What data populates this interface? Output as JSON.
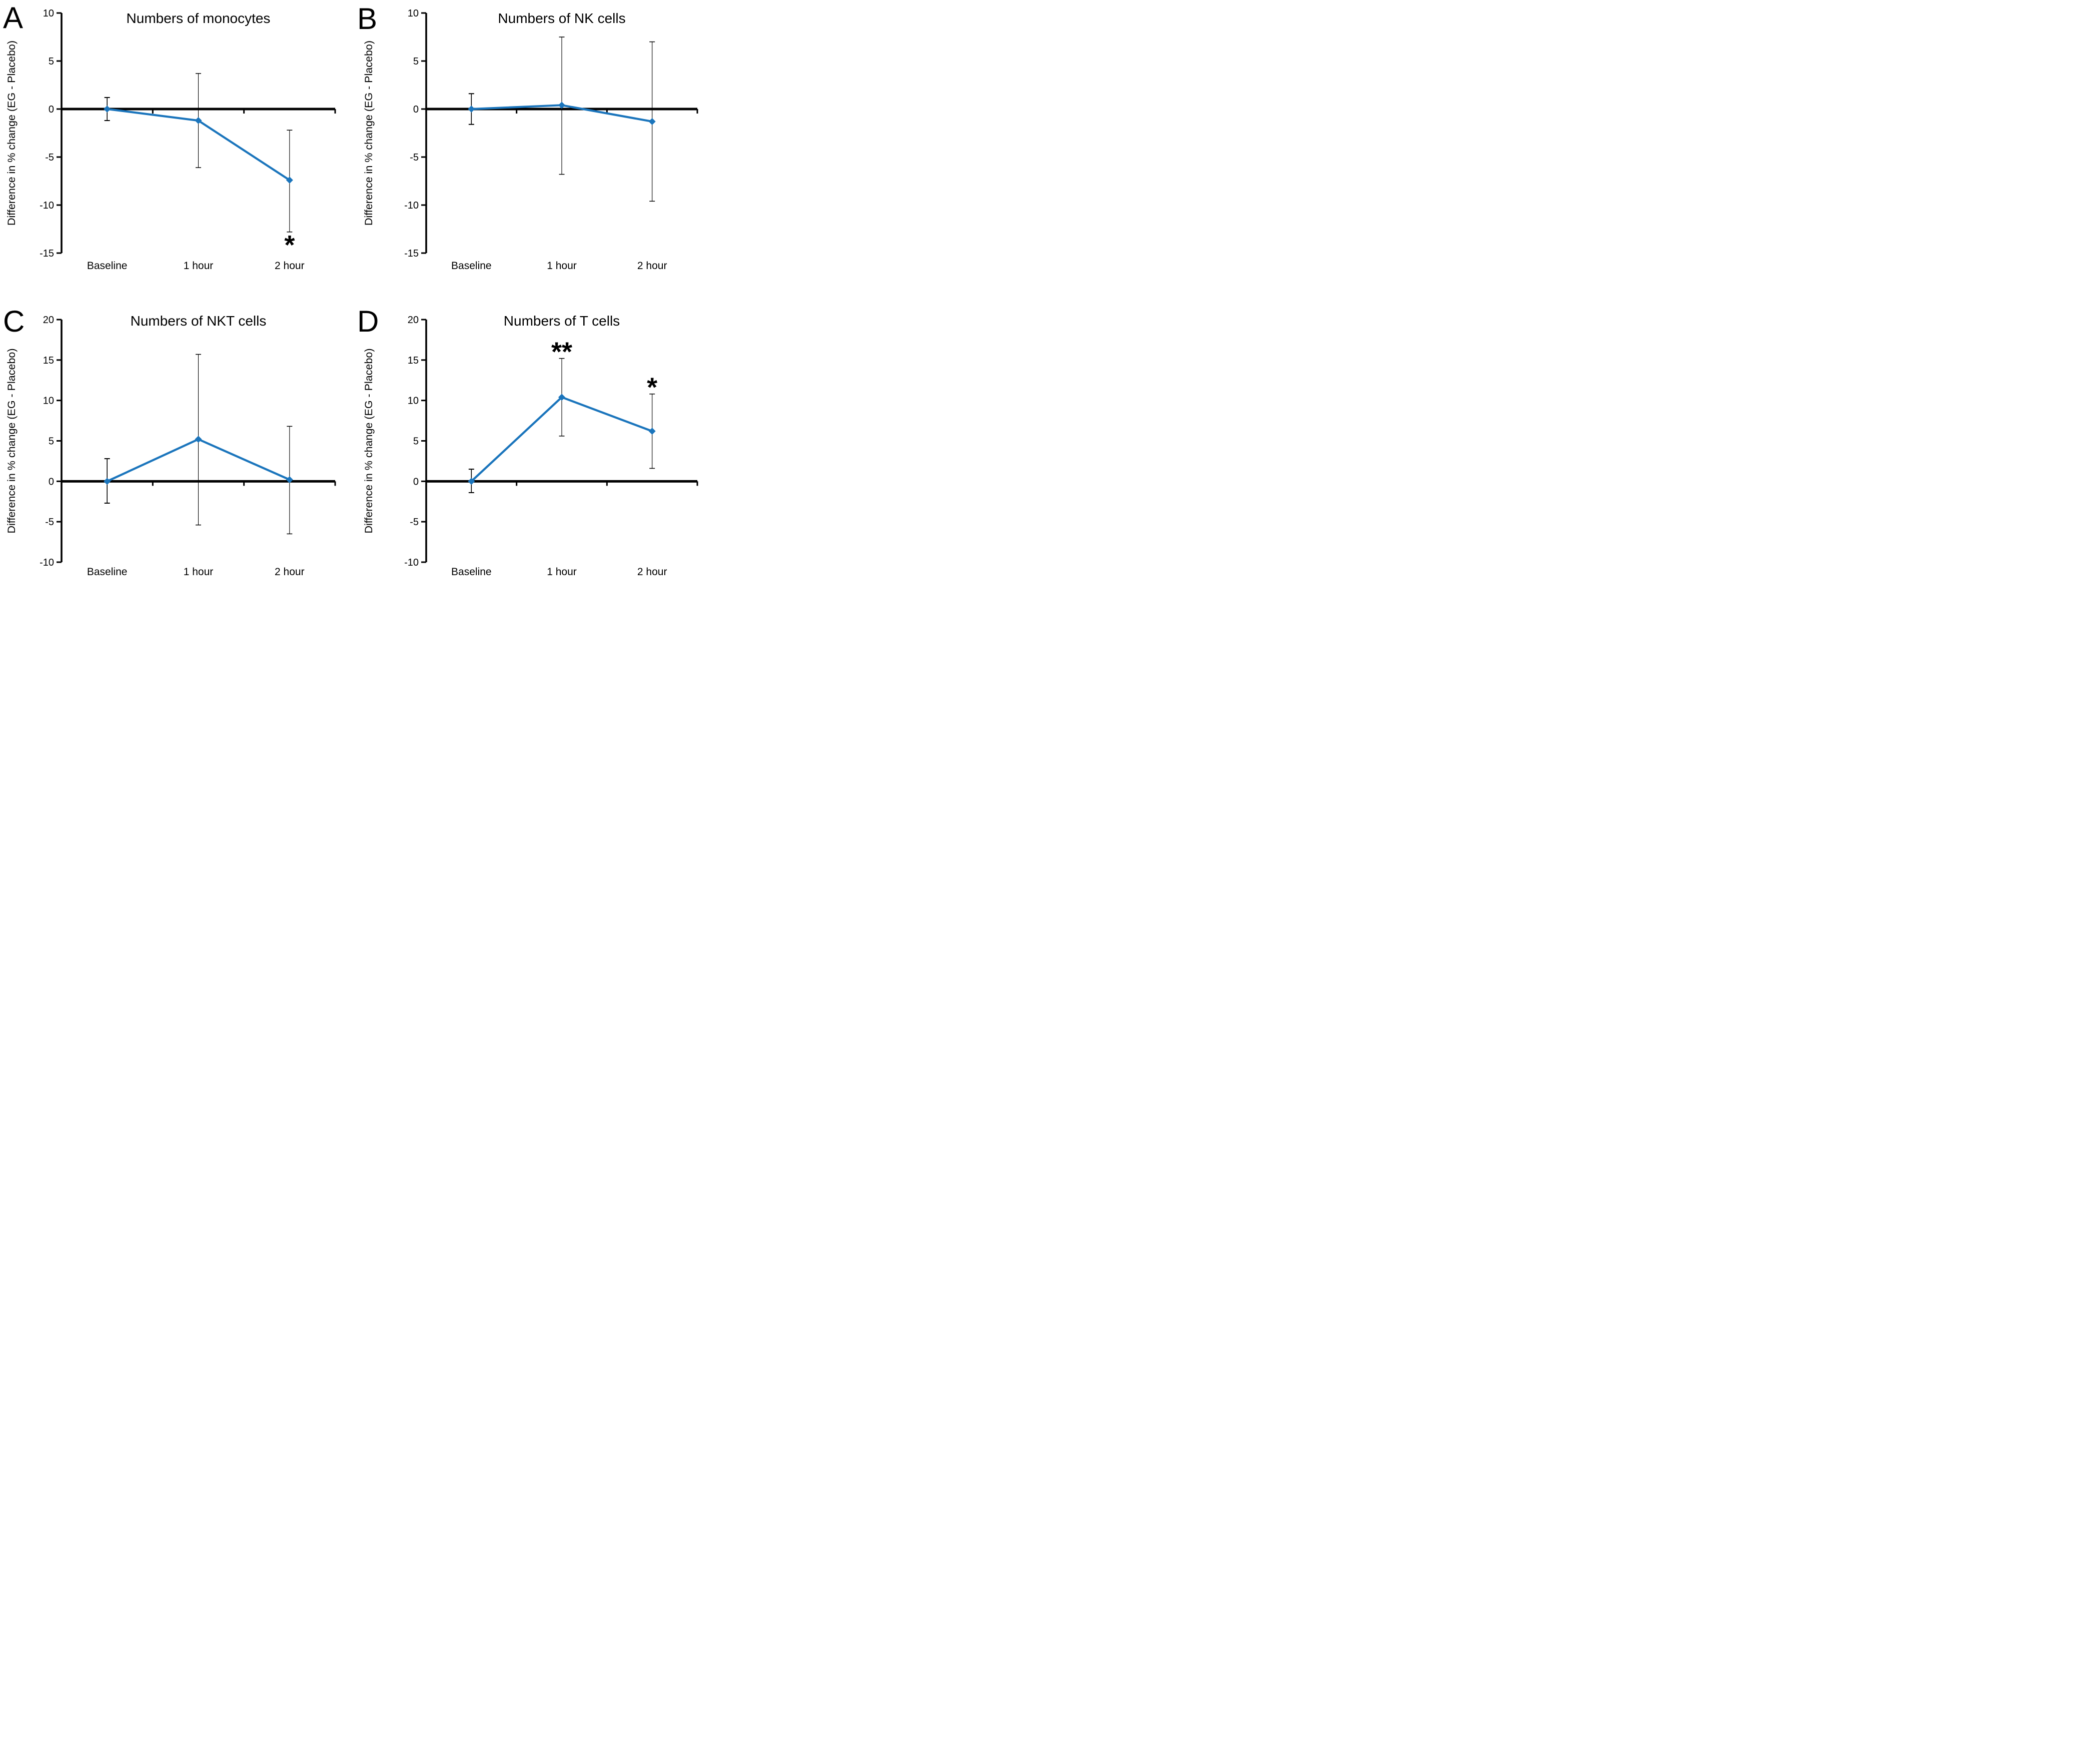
{
  "figure": {
    "background_color": "#ffffff",
    "text_color": "#000000",
    "accent_color": "#1b75bc",
    "panel_letters": [
      "A",
      "B",
      "C",
      "D"
    ]
  },
  "chart_data": [
    {
      "panel": "A",
      "type": "line",
      "title": "Numbers of monocytes",
      "xlabel": "",
      "ylabel": "Difference in % change (EG - Placebo)",
      "categories": [
        "Baseline",
        "1 hour",
        "2 hour"
      ],
      "ylim": [
        -15,
        10
      ],
      "yticks": [
        10,
        5,
        0,
        -5,
        -10,
        -15
      ],
      "grid": false,
      "legend": "none",
      "series": [
        {
          "name": "EG minus Placebo",
          "color": "#1b75bc",
          "marker": "diamond",
          "values": [
            0,
            -1.2,
            -7.4
          ],
          "err_upper": [
            1.2,
            3.7,
            -2.2
          ],
          "err_lower": [
            -1.2,
            -6.1,
            -12.8
          ]
        }
      ],
      "annotations": [
        {
          "text": "*",
          "category_index": 2,
          "placement": "below_error_bar"
        }
      ]
    },
    {
      "panel": "B",
      "type": "line",
      "title": "Numbers of NK cells",
      "xlabel": "",
      "ylabel": "Difference in % change (EG - Placebo)",
      "categories": [
        "Baseline",
        "1 hour",
        "2 hour"
      ],
      "ylim": [
        -15,
        10
      ],
      "yticks": [
        10,
        5,
        0,
        -5,
        -10,
        -15
      ],
      "grid": false,
      "legend": "none",
      "series": [
        {
          "name": "EG minus Placebo",
          "color": "#1b75bc",
          "marker": "diamond",
          "values": [
            0,
            0.4,
            -1.3
          ],
          "err_upper": [
            1.6,
            7.5,
            7.0
          ],
          "err_lower": [
            -1.6,
            -6.8,
            -9.6
          ]
        }
      ],
      "annotations": []
    },
    {
      "panel": "C",
      "type": "line",
      "title": "Numbers of NKT cells",
      "xlabel": "",
      "ylabel": "Difference in % change (EG - Placebo)",
      "categories": [
        "Baseline",
        "1 hour",
        "2 hour"
      ],
      "ylim": [
        -10,
        20
      ],
      "yticks": [
        20,
        15,
        10,
        5,
        0,
        -5,
        -10
      ],
      "grid": false,
      "legend": "none",
      "series": [
        {
          "name": "EG minus Placebo",
          "color": "#1b75bc",
          "marker": "diamond",
          "values": [
            0,
            5.2,
            0.2
          ],
          "err_upper": [
            2.8,
            15.7,
            6.8
          ],
          "err_lower": [
            -2.7,
            -5.4,
            -6.5
          ]
        }
      ],
      "annotations": []
    },
    {
      "panel": "D",
      "type": "line",
      "title": "Numbers of T cells",
      "xlabel": "",
      "ylabel": "Difference in % change (EG - Placebo)",
      "categories": [
        "Baseline",
        "1 hour",
        "2 hour"
      ],
      "ylim": [
        -10,
        20
      ],
      "yticks": [
        20,
        15,
        10,
        5,
        0,
        -5,
        -10
      ],
      "grid": false,
      "legend": "none",
      "series": [
        {
          "name": "EG minus Placebo",
          "color": "#1b75bc",
          "marker": "diamond",
          "values": [
            0,
            10.4,
            6.2
          ],
          "err_upper": [
            1.5,
            15.2,
            10.8
          ],
          "err_lower": [
            -1.4,
            5.6,
            1.6
          ]
        }
      ],
      "annotations": [
        {
          "text": "**",
          "category_index": 1,
          "placement": "above_error_bar"
        },
        {
          "text": "*",
          "category_index": 2,
          "placement": "above_error_bar"
        }
      ]
    }
  ]
}
